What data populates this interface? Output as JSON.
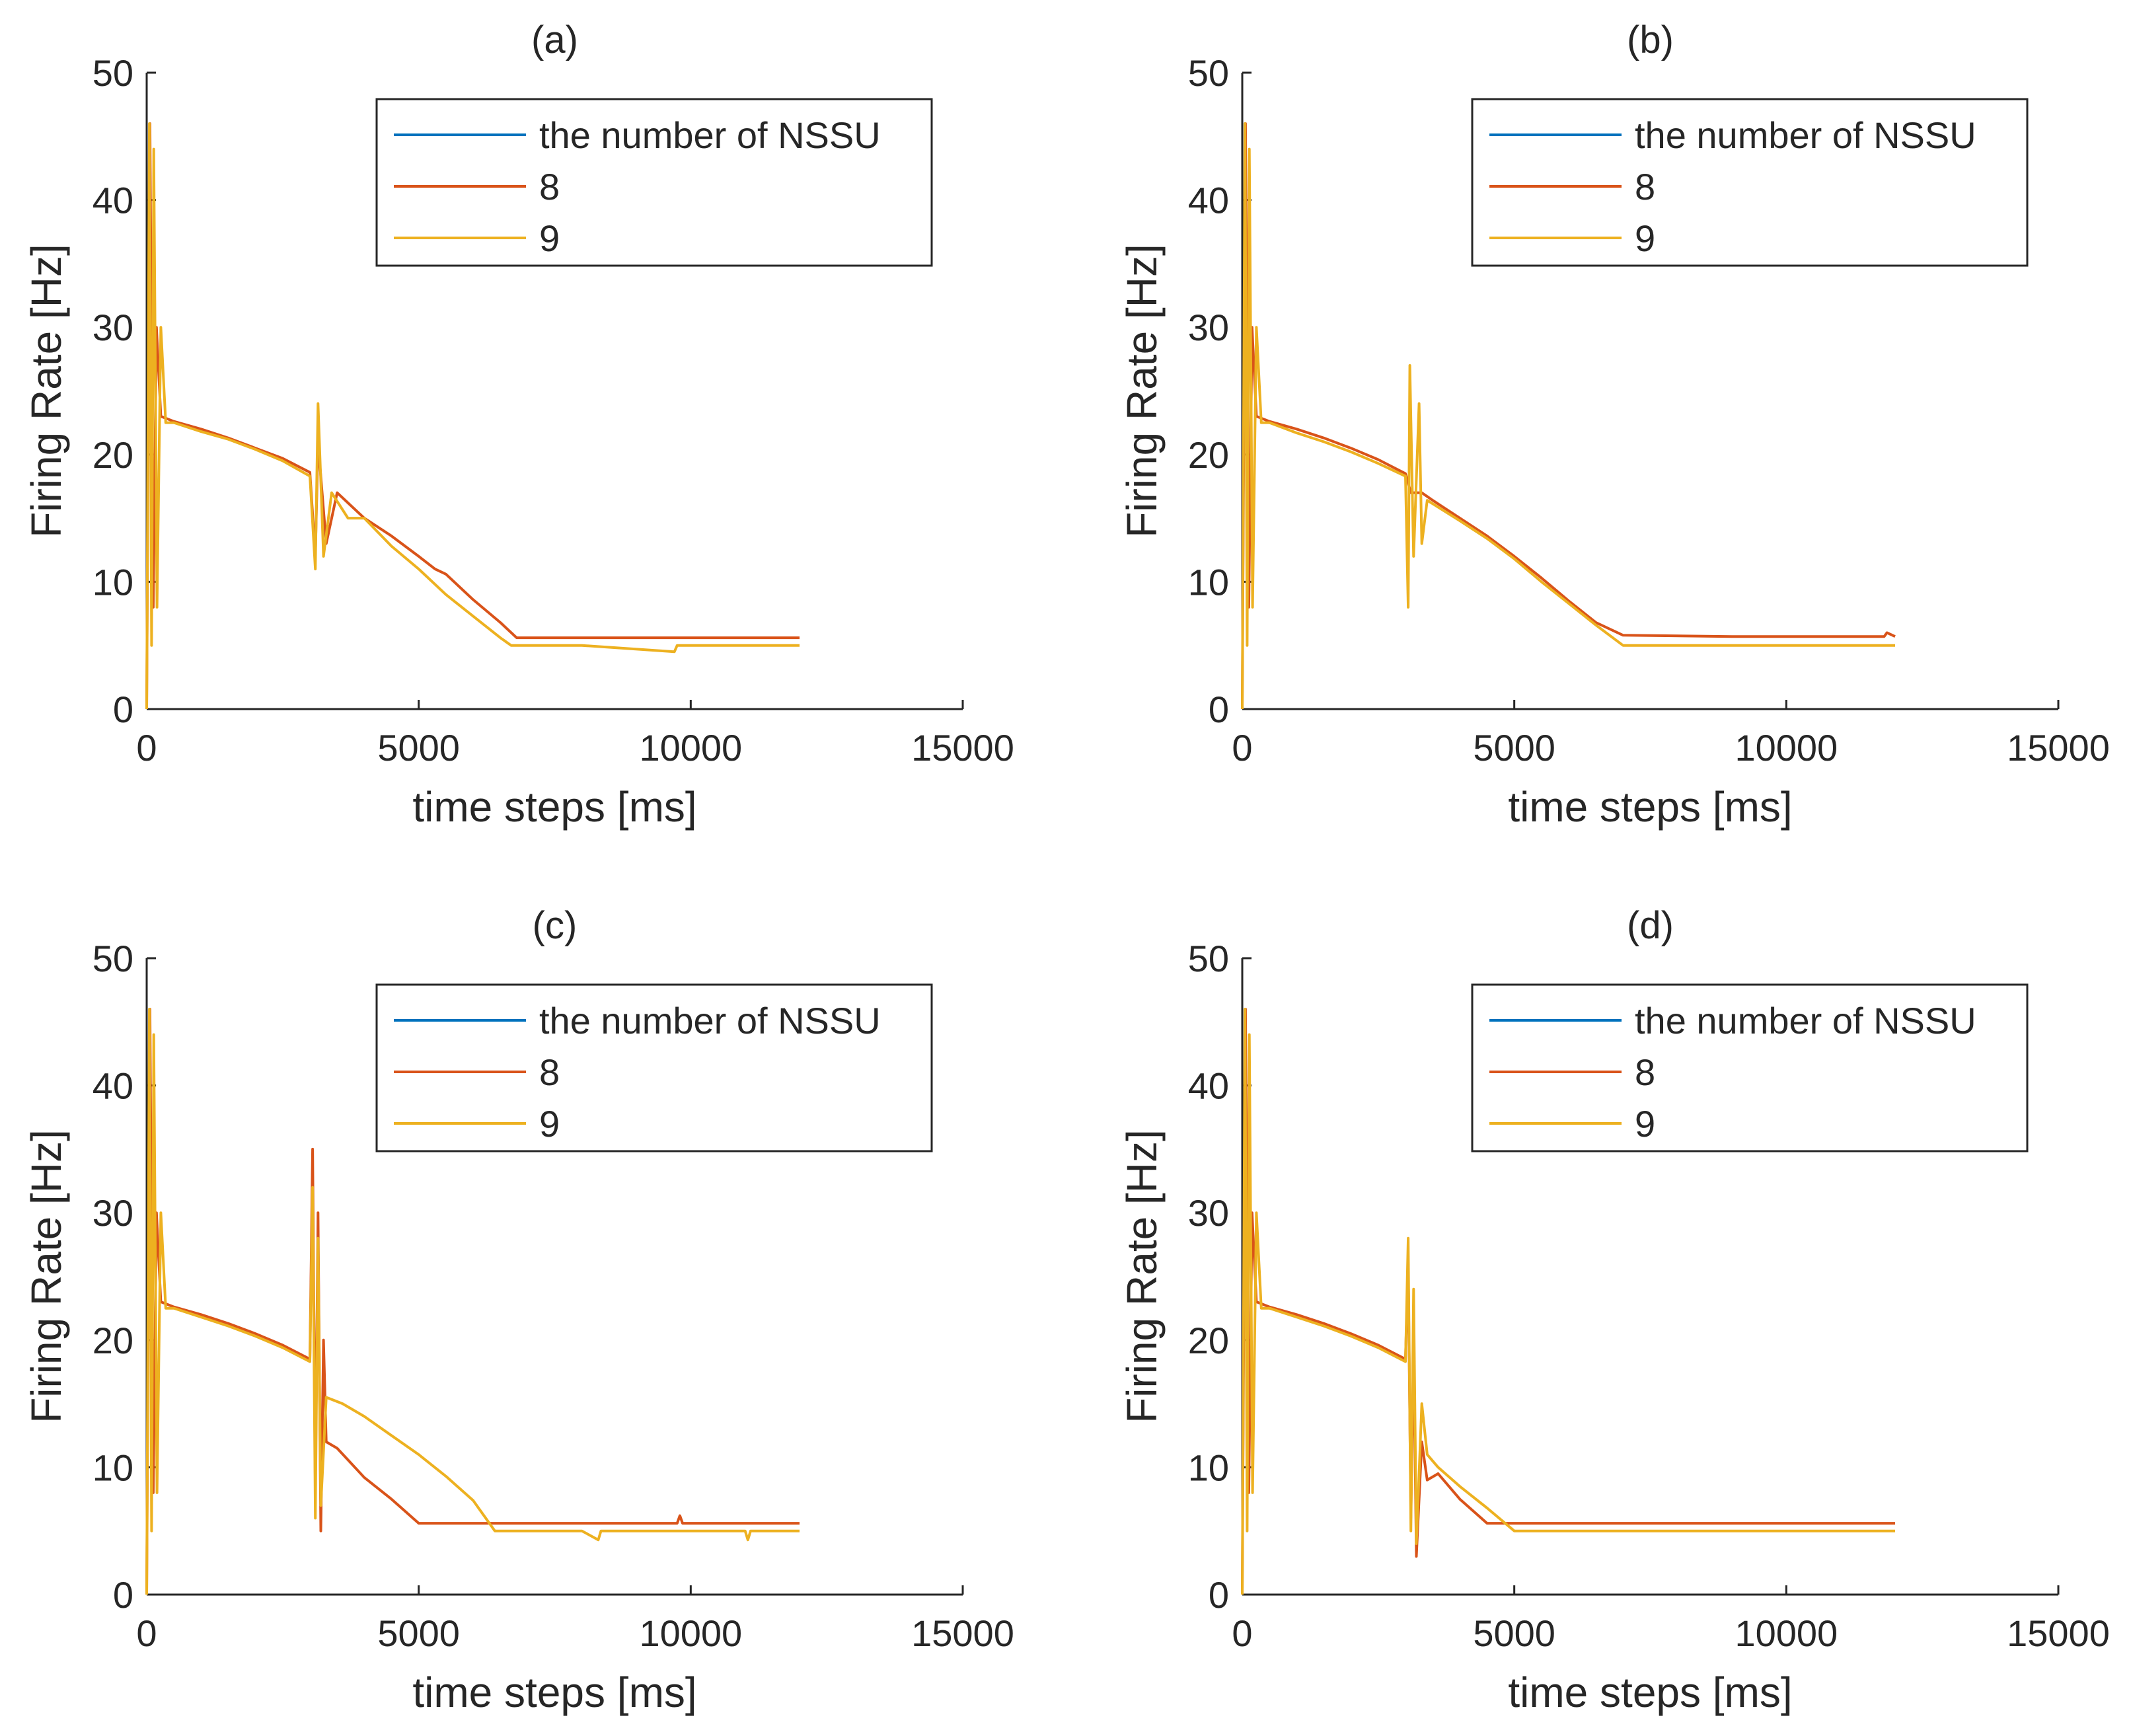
{
  "colors": {
    "series_nssu": "#0072BD",
    "series_8": "#D95319",
    "series_9": "#EDB120",
    "axis": "#262626",
    "background": "#ffffff"
  },
  "chart_data": [
    {
      "type": "line",
      "title": "(a)",
      "xlabel": "time steps [ms]",
      "ylabel": "Firing Rate [Hz]",
      "xlim": [
        0,
        15000
      ],
      "ylim": [
        0,
        50
      ],
      "xticks": [
        0,
        5000,
        10000,
        15000
      ],
      "yticks": [
        0,
        10,
        20,
        30,
        40,
        50
      ],
      "legend": {
        "entries": [
          "the number of NSSU",
          "8",
          "9"
        ],
        "location": "top-right"
      },
      "series": [
        {
          "name": "the number of NSSU",
          "points": []
        },
        {
          "name": "8",
          "points": [
            [
              0,
              0
            ],
            [
              60,
              46
            ],
            [
              120,
              8
            ],
            [
              180,
              30
            ],
            [
              260,
              23
            ],
            [
              500,
              22.6
            ],
            [
              1000,
              22
            ],
            [
              1500,
              21.3
            ],
            [
              2000,
              20.5
            ],
            [
              2500,
              19.7
            ],
            [
              3000,
              18.6
            ],
            [
              3100,
              12
            ],
            [
              3150,
              21
            ],
            [
              3300,
              13
            ],
            [
              3500,
              17
            ],
            [
              4000,
              15
            ],
            [
              4500,
              13.6
            ],
            [
              5000,
              12
            ],
            [
              5300,
              11
            ],
            [
              5500,
              10.6
            ],
            [
              6000,
              8.6
            ],
            [
              6500,
              6.8
            ],
            [
              6800,
              5.6
            ],
            [
              8000,
              5.6
            ],
            [
              10000,
              5.6
            ],
            [
              12000,
              5.6
            ]
          ]
        },
        {
          "name": "9",
          "points": [
            [
              0,
              0
            ],
            [
              50,
              46
            ],
            [
              90,
              5
            ],
            [
              130,
              44
            ],
            [
              190,
              8
            ],
            [
              260,
              30
            ],
            [
              350,
              22.5
            ],
            [
              500,
              22.5
            ],
            [
              1000,
              21.8
            ],
            [
              1500,
              21.2
            ],
            [
              2000,
              20.4
            ],
            [
              2500,
              19.5
            ],
            [
              3000,
              18.3
            ],
            [
              3100,
              11
            ],
            [
              3150,
              24
            ],
            [
              3250,
              12
            ],
            [
              3400,
              17
            ],
            [
              3700,
              15
            ],
            [
              4000,
              15
            ],
            [
              4500,
              12.8
            ],
            [
              5000,
              11
            ],
            [
              5500,
              9
            ],
            [
              6000,
              7.3
            ],
            [
              6500,
              5.6
            ],
            [
              6700,
              5
            ],
            [
              8000,
              5
            ],
            [
              9700,
              4.5
            ],
            [
              9750,
              5
            ],
            [
              12000,
              5
            ]
          ]
        }
      ]
    },
    {
      "type": "line",
      "title": "(b)",
      "xlabel": "time steps [ms]",
      "ylabel": "Firing Rate [Hz]",
      "xlim": [
        0,
        15000
      ],
      "ylim": [
        0,
        50
      ],
      "xticks": [
        0,
        5000,
        10000,
        15000
      ],
      "yticks": [
        0,
        10,
        20,
        30,
        40,
        50
      ],
      "legend": {
        "entries": [
          "the number of NSSU",
          "8",
          "9"
        ],
        "location": "top-right"
      },
      "series": [
        {
          "name": "the number of NSSU",
          "points": []
        },
        {
          "name": "8",
          "points": [
            [
              0,
              0
            ],
            [
              60,
              46
            ],
            [
              120,
              8
            ],
            [
              180,
              30
            ],
            [
              260,
              23
            ],
            [
              500,
              22.6
            ],
            [
              1000,
              22
            ],
            [
              1500,
              21.3
            ],
            [
              2000,
              20.5
            ],
            [
              2500,
              19.6
            ],
            [
              3000,
              18.5
            ],
            [
              3100,
              17
            ],
            [
              3300,
              17
            ],
            [
              3500,
              16.4
            ],
            [
              4000,
              15
            ],
            [
              4500,
              13.6
            ],
            [
              5000,
              12
            ],
            [
              5500,
              10.3
            ],
            [
              6000,
              8.5
            ],
            [
              6500,
              6.8
            ],
            [
              7000,
              5.8
            ],
            [
              9000,
              5.7
            ],
            [
              11800,
              5.7
            ],
            [
              11850,
              6
            ],
            [
              12000,
              5.7
            ]
          ]
        },
        {
          "name": "9",
          "points": [
            [
              0,
              0
            ],
            [
              50,
              46
            ],
            [
              90,
              5
            ],
            [
              130,
              44
            ],
            [
              190,
              8
            ],
            [
              260,
              30
            ],
            [
              350,
              22.5
            ],
            [
              500,
              22.5
            ],
            [
              1000,
              21.7
            ],
            [
              1500,
              21
            ],
            [
              2000,
              20.2
            ],
            [
              2500,
              19.3
            ],
            [
              3000,
              18.3
            ],
            [
              3050,
              8
            ],
            [
              3080,
              27
            ],
            [
              3150,
              12
            ],
            [
              3250,
              24
            ],
            [
              3300,
              13
            ],
            [
              3400,
              16.4
            ],
            [
              4000,
              14.8
            ],
            [
              4500,
              13.4
            ],
            [
              5000,
              11.8
            ],
            [
              5500,
              10
            ],
            [
              6000,
              8.3
            ],
            [
              6500,
              6.6
            ],
            [
              7000,
              5
            ],
            [
              9000,
              5
            ],
            [
              11000,
              5
            ],
            [
              12000,
              5
            ]
          ]
        }
      ]
    },
    {
      "type": "line",
      "title": "(c)",
      "xlabel": "time steps [ms]",
      "ylabel": "Firing Rate [Hz]",
      "xlim": [
        0,
        15000
      ],
      "ylim": [
        0,
        50
      ],
      "xticks": [
        0,
        5000,
        10000,
        15000
      ],
      "yticks": [
        0,
        10,
        20,
        30,
        40,
        50
      ],
      "legend": {
        "entries": [
          "the number of NSSU",
          "8",
          "9"
        ],
        "location": "top-right"
      },
      "series": [
        {
          "name": "the number of NSSU",
          "points": []
        },
        {
          "name": "8",
          "points": [
            [
              0,
              0
            ],
            [
              60,
              46
            ],
            [
              120,
              8
            ],
            [
              180,
              30
            ],
            [
              260,
              23
            ],
            [
              500,
              22.6
            ],
            [
              1000,
              22
            ],
            [
              1500,
              21.3
            ],
            [
              2000,
              20.5
            ],
            [
              2500,
              19.6
            ],
            [
              3000,
              18.5
            ],
            [
              3050,
              35
            ],
            [
              3100,
              8
            ],
            [
              3150,
              30
            ],
            [
              3200,
              5
            ],
            [
              3250,
              20
            ],
            [
              3300,
              12
            ],
            [
              3500,
              11.5
            ],
            [
              4000,
              9.2
            ],
            [
              4500,
              7.5
            ],
            [
              5000,
              5.6
            ],
            [
              6000,
              5.6
            ],
            [
              8000,
              5.6
            ],
            [
              9750,
              5.6
            ],
            [
              9800,
              6.2
            ],
            [
              9850,
              5.6
            ],
            [
              12000,
              5.6
            ]
          ]
        },
        {
          "name": "9",
          "points": [
            [
              0,
              0
            ],
            [
              50,
              46
            ],
            [
              90,
              5
            ],
            [
              130,
              44
            ],
            [
              190,
              8
            ],
            [
              260,
              30
            ],
            [
              350,
              22.5
            ],
            [
              500,
              22.5
            ],
            [
              1000,
              21.8
            ],
            [
              1500,
              21.1
            ],
            [
              2000,
              20.3
            ],
            [
              2500,
              19.4
            ],
            [
              3000,
              18.3
            ],
            [
              3050,
              32
            ],
            [
              3100,
              6
            ],
            [
              3150,
              28
            ],
            [
              3200,
              7
            ],
            [
              3300,
              15.5
            ],
            [
              3600,
              15
            ],
            [
              4000,
              14
            ],
            [
              4500,
              12.5
            ],
            [
              5000,
              11
            ],
            [
              5500,
              9.3
            ],
            [
              6000,
              7.4
            ],
            [
              6400,
              5
            ],
            [
              8000,
              5
            ],
            [
              8300,
              4.3
            ],
            [
              8350,
              5
            ],
            [
              11000,
              5
            ],
            [
              11050,
              4.3
            ],
            [
              11100,
              5
            ],
            [
              12000,
              5
            ]
          ]
        }
      ]
    },
    {
      "type": "line",
      "title": "(d)",
      "xlabel": "time steps [ms]",
      "ylabel": "Firing Rate [Hz]",
      "xlim": [
        0,
        15000
      ],
      "ylim": [
        0,
        50
      ],
      "xticks": [
        0,
        5000,
        10000,
        15000
      ],
      "yticks": [
        0,
        10,
        20,
        30,
        40,
        50
      ],
      "legend": {
        "entries": [
          "the number of NSSU",
          "8",
          "9"
        ],
        "location": "top-right"
      },
      "series": [
        {
          "name": "the number of NSSU",
          "points": []
        },
        {
          "name": "8",
          "points": [
            [
              0,
              0
            ],
            [
              60,
              46
            ],
            [
              120,
              8
            ],
            [
              180,
              30
            ],
            [
              260,
              23
            ],
            [
              500,
              22.6
            ],
            [
              1000,
              22
            ],
            [
              1500,
              21.3
            ],
            [
              2000,
              20.5
            ],
            [
              2500,
              19.6
            ],
            [
              3000,
              18.5
            ],
            [
              3050,
              26
            ],
            [
              3100,
              6
            ],
            [
              3150,
              20
            ],
            [
              3200,
              3
            ],
            [
              3300,
              12
            ],
            [
              3400,
              9
            ],
            [
              3600,
              9.5
            ],
            [
              4000,
              7.5
            ],
            [
              4500,
              5.6
            ],
            [
              6000,
              5.6
            ],
            [
              8000,
              5.6
            ],
            [
              11000,
              5.6
            ],
            [
              12000,
              5.6
            ]
          ]
        },
        {
          "name": "9",
          "points": [
            [
              0,
              0
            ],
            [
              50,
              46
            ],
            [
              90,
              5
            ],
            [
              130,
              44
            ],
            [
              190,
              8
            ],
            [
              260,
              30
            ],
            [
              350,
              22.5
            ],
            [
              500,
              22.5
            ],
            [
              1000,
              21.8
            ],
            [
              1500,
              21.1
            ],
            [
              2000,
              20.3
            ],
            [
              2500,
              19.4
            ],
            [
              3000,
              18.3
            ],
            [
              3050,
              28
            ],
            [
              3100,
              5
            ],
            [
              3150,
              24
            ],
            [
              3200,
              4
            ],
            [
              3300,
              15
            ],
            [
              3400,
              11
            ],
            [
              3600,
              10
            ],
            [
              4000,
              8.5
            ],
            [
              4500,
              6.8
            ],
            [
              5000,
              5
            ],
            [
              8000,
              5
            ],
            [
              11000,
              5
            ],
            [
              12000,
              5
            ]
          ]
        }
      ]
    }
  ]
}
